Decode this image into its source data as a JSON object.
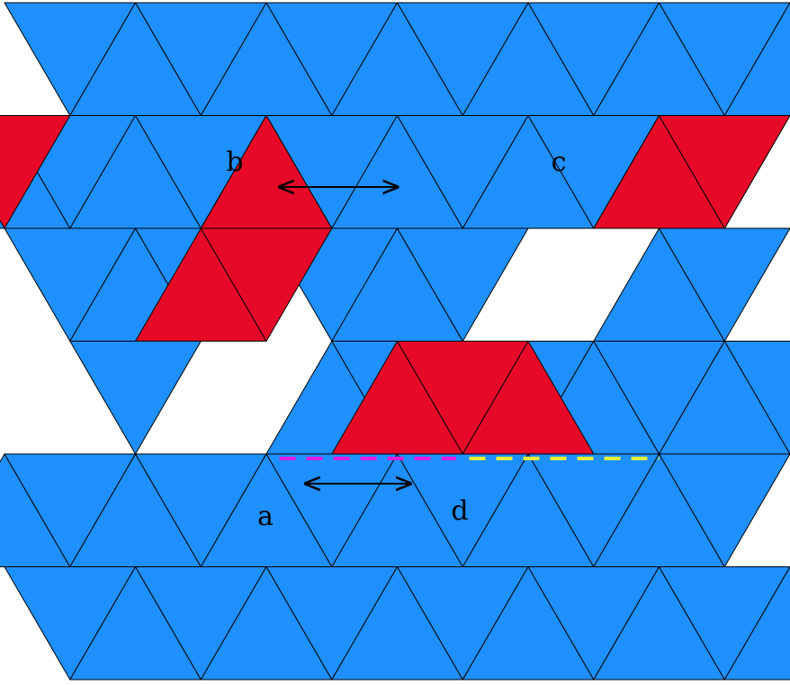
{
  "colors": {
    "blue": "#1E90FF",
    "red": "#E60A28",
    "outline": "#000000",
    "magenta_dash": "#E01EE0",
    "yellow_dash": "#E6F03C",
    "arrow": "#000000"
  },
  "labels": {
    "a": "a",
    "b": "b",
    "c": "c",
    "d": "d"
  },
  "tiles": {
    "blue": [
      [
        0,
        0,
        "d"
      ],
      [
        0,
        1,
        "u"
      ],
      [
        0,
        2,
        "d"
      ],
      [
        0,
        3,
        "u"
      ],
      [
        0,
        4,
        "d"
      ],
      [
        0,
        5,
        "u"
      ],
      [
        0,
        6,
        "d"
      ],
      [
        0,
        7,
        "u"
      ],
      [
        0,
        8,
        "d"
      ],
      [
        0,
        9,
        "u"
      ],
      [
        0,
        10,
        "d"
      ],
      [
        0,
        11,
        "u"
      ],
      [
        1,
        0,
        "u"
      ],
      [
        1,
        1,
        "d"
      ],
      [
        1,
        2,
        "u"
      ],
      [
        1,
        3,
        "d"
      ],
      [
        1,
        4,
        "u"
      ],
      [
        1,
        5,
        "d"
      ],
      [
        1,
        6,
        "u"
      ],
      [
        1,
        7,
        "d"
      ],
      [
        1,
        8,
        "u"
      ],
      [
        1,
        9,
        "d"
      ],
      [
        1,
        10,
        "u"
      ],
      [
        1,
        11,
        "d"
      ],
      [
        4,
        0,
        "u"
      ],
      [
        4,
        1,
        "d"
      ],
      [
        4,
        2,
        "u"
      ],
      [
        4,
        3,
        "d"
      ],
      [
        4,
        4,
        "u"
      ],
      [
        4,
        5,
        "d"
      ],
      [
        4,
        6,
        "u"
      ],
      [
        4,
        7,
        "d"
      ],
      [
        4,
        8,
        "u"
      ],
      [
        4,
        9,
        "d"
      ],
      [
        4,
        10,
        "u"
      ],
      [
        4,
        11,
        "d"
      ],
      [
        5,
        0,
        "d"
      ],
      [
        5,
        1,
        "u"
      ],
      [
        5,
        2,
        "d"
      ],
      [
        5,
        3,
        "u"
      ],
      [
        5,
        4,
        "d"
      ],
      [
        5,
        5,
        "u"
      ],
      [
        5,
        6,
        "d"
      ],
      [
        5,
        7,
        "u"
      ],
      [
        5,
        8,
        "d"
      ],
      [
        5,
        9,
        "u"
      ],
      [
        5,
        10,
        "d"
      ],
      [
        5,
        11,
        "u"
      ],
      [
        2,
        0,
        "d"
      ],
      [
        2,
        1,
        "u"
      ],
      [
        2,
        2,
        "d"
      ],
      [
        2,
        4,
        "d"
      ],
      [
        2,
        5,
        "u"
      ],
      [
        2,
        6,
        "d"
      ],
      [
        2,
        9,
        "u"
      ],
      [
        2,
        10,
        "d"
      ],
      [
        3,
        1,
        "d"
      ],
      [
        3,
        4,
        "u"
      ],
      [
        3,
        5,
        "d"
      ],
      [
        3,
        7,
        "d"
      ],
      [
        3,
        8,
        "u"
      ],
      [
        3,
        9,
        "d"
      ],
      [
        3,
        10,
        "u"
      ],
      [
        3,
        11,
        "d"
      ]
    ],
    "red": [
      [
        2,
        2,
        "u"
      ],
      [
        2,
        3,
        "d"
      ],
      [
        3,
        5,
        "u"
      ],
      [
        3,
        6,
        "d"
      ],
      [
        3,
        7,
        "u"
      ],
      [
        1,
        0,
        "d"
      ],
      [
        1,
        4,
        "u"
      ],
      [
        1,
        10,
        "u"
      ],
      [
        1,
        11,
        "d"
      ]
    ]
  },
  "arrows": [
    {
      "name": "arrow-a",
      "label": "a",
      "row": 4,
      "from": 2.3,
      "to": 3.1
    },
    {
      "name": "arrow-b",
      "label": "b",
      "row": 1,
      "from": 2.1,
      "to": 3.0
    },
    {
      "name": "arrow-c",
      "label": "c",
      "row": 1,
      "from": 7.0,
      "to": 7.85
    },
    {
      "name": "arrow-d",
      "label": "d",
      "row": 5,
      "from": 6.15,
      "to": 7.0
    }
  ],
  "dashes": [
    {
      "name": "magenta-dashed-line",
      "color": "magenta_dash",
      "from": 2.1,
      "to": 3.45
    },
    {
      "name": "yellow-dashed-line",
      "color": "yellow_dash",
      "from": 3.55,
      "to": 5.0
    }
  ]
}
